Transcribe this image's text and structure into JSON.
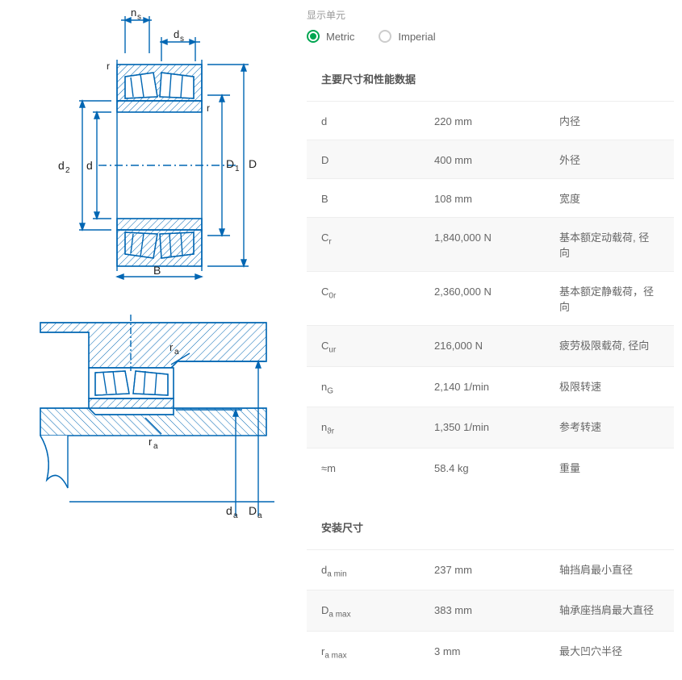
{
  "unit_selector": {
    "label": "显示单元",
    "options": [
      {
        "label": "Metric",
        "selected": true
      },
      {
        "label": "Imperial",
        "selected": false
      }
    ],
    "accent_color": "#00a651"
  },
  "section1": {
    "title": "主要尺寸和性能数据",
    "rows": [
      {
        "sym": "d",
        "sub": "",
        "val": "220 mm",
        "desc": "内径"
      },
      {
        "sym": "D",
        "sub": "",
        "val": "400 mm",
        "desc": "外径"
      },
      {
        "sym": "B",
        "sub": "",
        "val": "108 mm",
        "desc": "宽度"
      },
      {
        "sym": "C",
        "sub": "r",
        "val": "1,840,000 N",
        "desc": "基本额定动载荷, 径向"
      },
      {
        "sym": "C",
        "sub": "0r",
        "val": "2,360,000 N",
        "desc": "基本额定静载荷，径向"
      },
      {
        "sym": "C",
        "sub": "ur",
        "val": "216,000 N",
        "desc": "疲劳极限载荷, 径向"
      },
      {
        "sym": "n",
        "sub": "G",
        "val": "2,140 1/min",
        "desc": "极限转速"
      },
      {
        "sym": "n",
        "sub": "ϑr",
        "val": "1,350 1/min",
        "desc": "参考转速"
      },
      {
        "sym": "≈m",
        "sub": "",
        "val": "58.4 kg",
        "desc": "重量"
      }
    ]
  },
  "section2": {
    "title": "安装尺寸",
    "rows": [
      {
        "sym": "d",
        "sub": "a min",
        "val": "237 mm",
        "desc": "轴挡肩最小直径"
      },
      {
        "sym": "D",
        "sub": "a max",
        "val": "383 mm",
        "desc": "轴承座挡肩最大直径"
      },
      {
        "sym": "r",
        "sub": "a max",
        "val": "3 mm",
        "desc": "最大凹穴半径"
      }
    ]
  },
  "diagram1": {
    "labels": {
      "ns": "n",
      "ns_sub": "s",
      "ds": "d",
      "ds_sub": "s",
      "r1": "r",
      "r2": "r",
      "d2": "d",
      "d2_sub": "2",
      "d": "d",
      "D1": "D",
      "D1_sub": "1",
      "D": "D",
      "B": "B"
    },
    "colors": {
      "stroke": "#0066b3",
      "text": "#222",
      "hatch": "#0066b3"
    }
  },
  "diagram2": {
    "labels": {
      "ra1": "r",
      "ra1_sub": "a",
      "ra2": "r",
      "ra2_sub": "a",
      "da": "d",
      "da_sub": "a",
      "Da": "D",
      "Da_sub": "a"
    },
    "colors": {
      "stroke": "#0066b3",
      "text": "#222"
    }
  }
}
